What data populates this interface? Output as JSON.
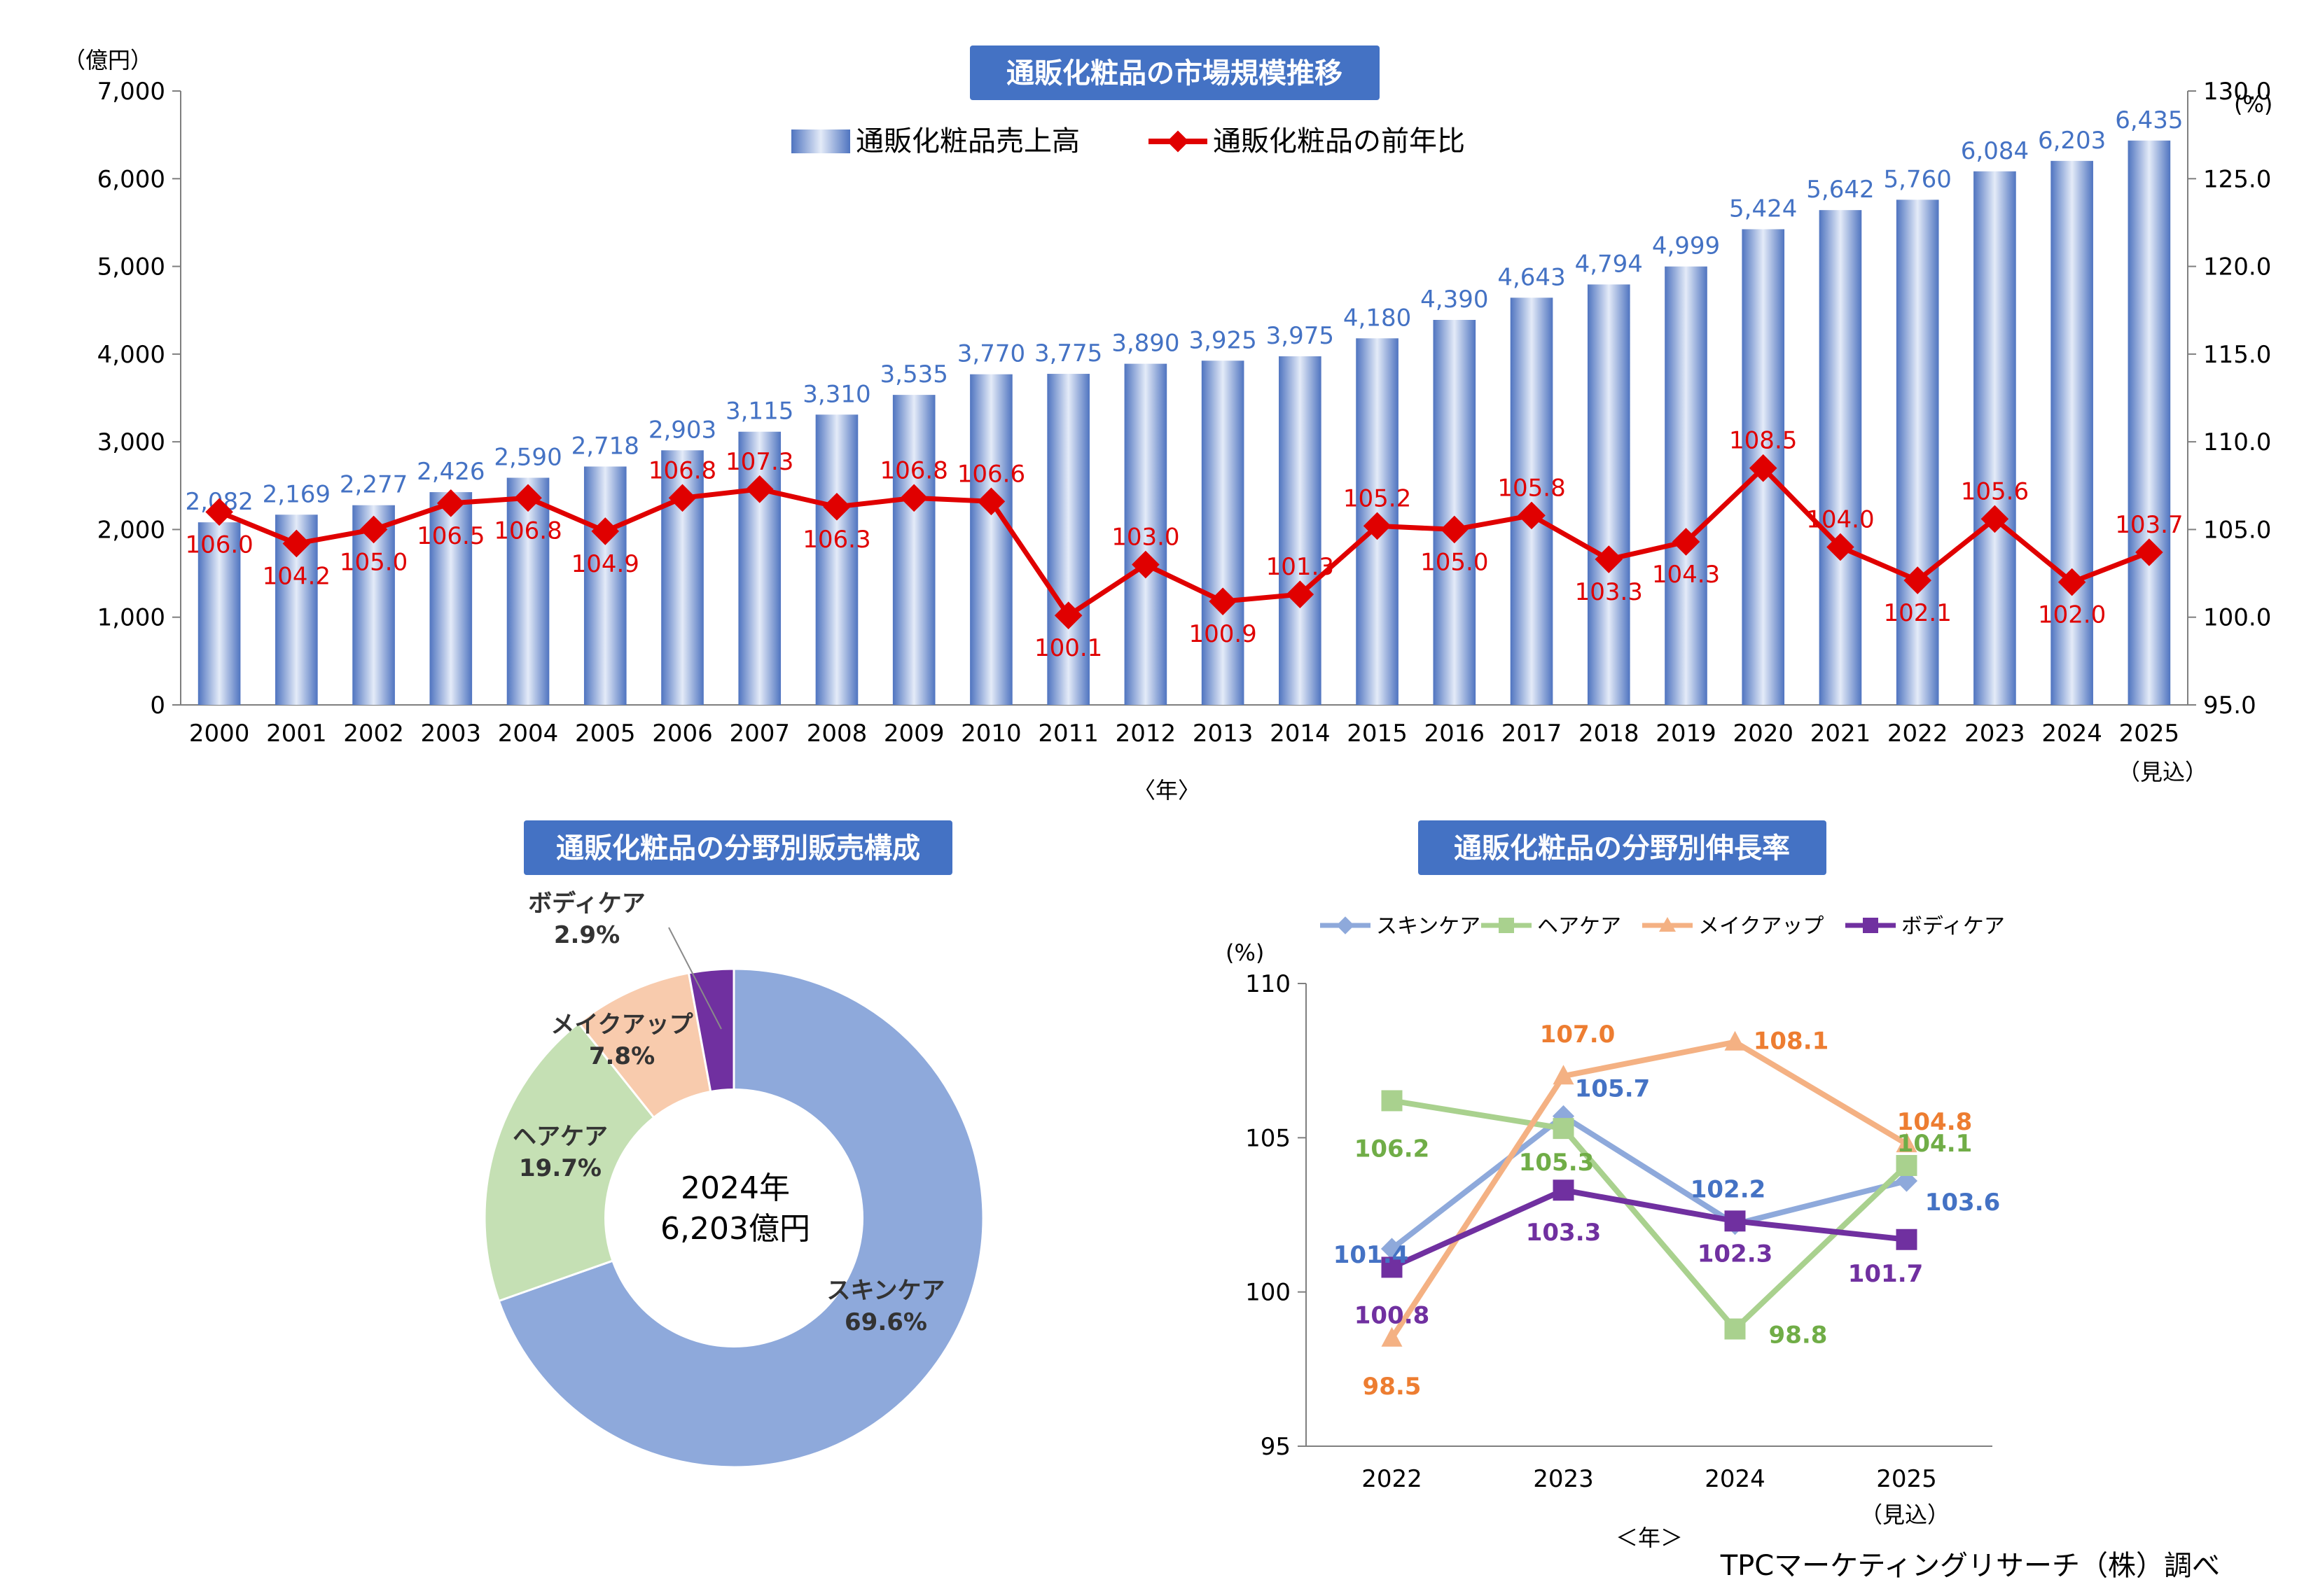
{
  "credit": "TPCマーケティングリサーチ（株）調べ",
  "colors": {
    "title_bg": "#4472C4",
    "bar": "#4472C4",
    "yoy_line": "#E00000",
    "skincare": "#8EA9DB",
    "haircare": "#C5E0B4",
    "makeup": "#F8CBAD",
    "bodycare": "#7030A0"
  },
  "chart_data": [
    {
      "type": "bar",
      "title": "通販化粧品の市場規模推移",
      "unit_left": "（億円）",
      "unit_right": "(%)",
      "xlabel": "〈年〉",
      "forecast_note": "（見込）",
      "categories": [
        "2000",
        "2001",
        "2002",
        "2003",
        "2004",
        "2005",
        "2006",
        "2007",
        "2008",
        "2009",
        "2010",
        "2011",
        "2012",
        "2013",
        "2014",
        "2015",
        "2016",
        "2017",
        "2018",
        "2019",
        "2020",
        "2021",
        "2022",
        "2023",
        "2024",
        "2025"
      ],
      "series": [
        {
          "name": "通販化粧品売上高",
          "axis": "left",
          "values": [
            2082,
            2169,
            2277,
            2426,
            2590,
            2718,
            2903,
            3115,
            3310,
            3535,
            3770,
            3775,
            3890,
            3925,
            3975,
            4180,
            4390,
            4643,
            4794,
            4999,
            5424,
            5642,
            5760,
            6084,
            6203,
            6435
          ],
          "labels": [
            "2,082",
            "2,169",
            "2,277",
            "2,426",
            "2,590",
            "2,718",
            "2,903",
            "3,115",
            "3,310",
            "3,535",
            "3,770",
            "3,775",
            "3,890",
            "3,925",
            "3,975",
            "4,180",
            "4,390",
            "4,643",
            "4,794",
            "4,999",
            "5,424",
            "5,642",
            "5,760",
            "6,084",
            "6,203",
            "6,435"
          ]
        },
        {
          "name": "通販化粧品の前年比",
          "axis": "right",
          "type": "line",
          "values": [
            106.0,
            104.2,
            105.0,
            106.5,
            106.8,
            104.9,
            106.8,
            107.3,
            106.3,
            106.8,
            106.6,
            100.1,
            103.0,
            100.9,
            101.3,
            105.2,
            105.0,
            105.8,
            103.3,
            104.3,
            108.5,
            104.0,
            102.1,
            105.6,
            102.0,
            103.7
          ],
          "labels": [
            "106.0",
            "104.2",
            "105.0",
            "106.5",
            "106.8",
            "104.9",
            "106.8",
            "107.3",
            "106.3",
            "106.8",
            "106.6",
            "100.1",
            "103.0",
            "100.9",
            "101.3",
            "105.2",
            "105.0",
            "105.8",
            "103.3",
            "104.3",
            "108.5",
            "104.0",
            "102.1",
            "105.6",
            "102.0",
            "103.7"
          ]
        }
      ],
      "ylim_left": [
        0,
        7000
      ],
      "yticks_left": [
        "0",
        "1,000",
        "2,000",
        "3,000",
        "4,000",
        "5,000",
        "6,000",
        "7,000"
      ],
      "ylim_right": [
        95,
        130
      ],
      "yticks_right": [
        "95.0",
        "100.0",
        "105.0",
        "110.0",
        "115.0",
        "120.0",
        "125.0",
        "130.0"
      ]
    },
    {
      "type": "pie",
      "title": "通販化粧品の分野別販売構成",
      "center_year": "2024年",
      "center_value": "6,203億円",
      "slices": [
        {
          "name": "スキンケア",
          "value": 69.6,
          "label": "69.6%"
        },
        {
          "name": "ヘアケア",
          "value": 19.7,
          "label": "19.7%"
        },
        {
          "name": "メイクアップ",
          "value": 7.8,
          "label": "7.8%"
        },
        {
          "name": "ボディケア",
          "value": 2.9,
          "label": "2.9%"
        }
      ]
    },
    {
      "type": "line",
      "title": "通販化粧品の分野別伸長率",
      "unit": "(%)",
      "xlabel": "＜年＞",
      "forecast_note": "（見込）",
      "categories": [
        "2022",
        "2023",
        "2024",
        "2025"
      ],
      "ylim": [
        95,
        110
      ],
      "yticks": [
        "95",
        "100",
        "105",
        "110"
      ],
      "series": [
        {
          "name": "スキンケア",
          "values": [
            101.4,
            105.7,
            102.2,
            103.6
          ],
          "labels": [
            "101.4",
            "105.7",
            "102.2",
            "103.6"
          ]
        },
        {
          "name": "ヘアケア",
          "values": [
            106.2,
            105.3,
            98.8,
            104.1
          ],
          "labels": [
            "106.2",
            "105.3",
            "98.8",
            "104.1"
          ]
        },
        {
          "name": "メイクアップ",
          "values": [
            98.5,
            107.0,
            108.1,
            104.8
          ],
          "labels": [
            "98.5",
            "107.0",
            "108.1",
            "104.8"
          ]
        },
        {
          "name": "ボディケア",
          "values": [
            100.8,
            103.3,
            102.3,
            101.7
          ],
          "labels": [
            "100.8",
            "103.3",
            "102.3",
            "101.7"
          ]
        }
      ]
    }
  ]
}
